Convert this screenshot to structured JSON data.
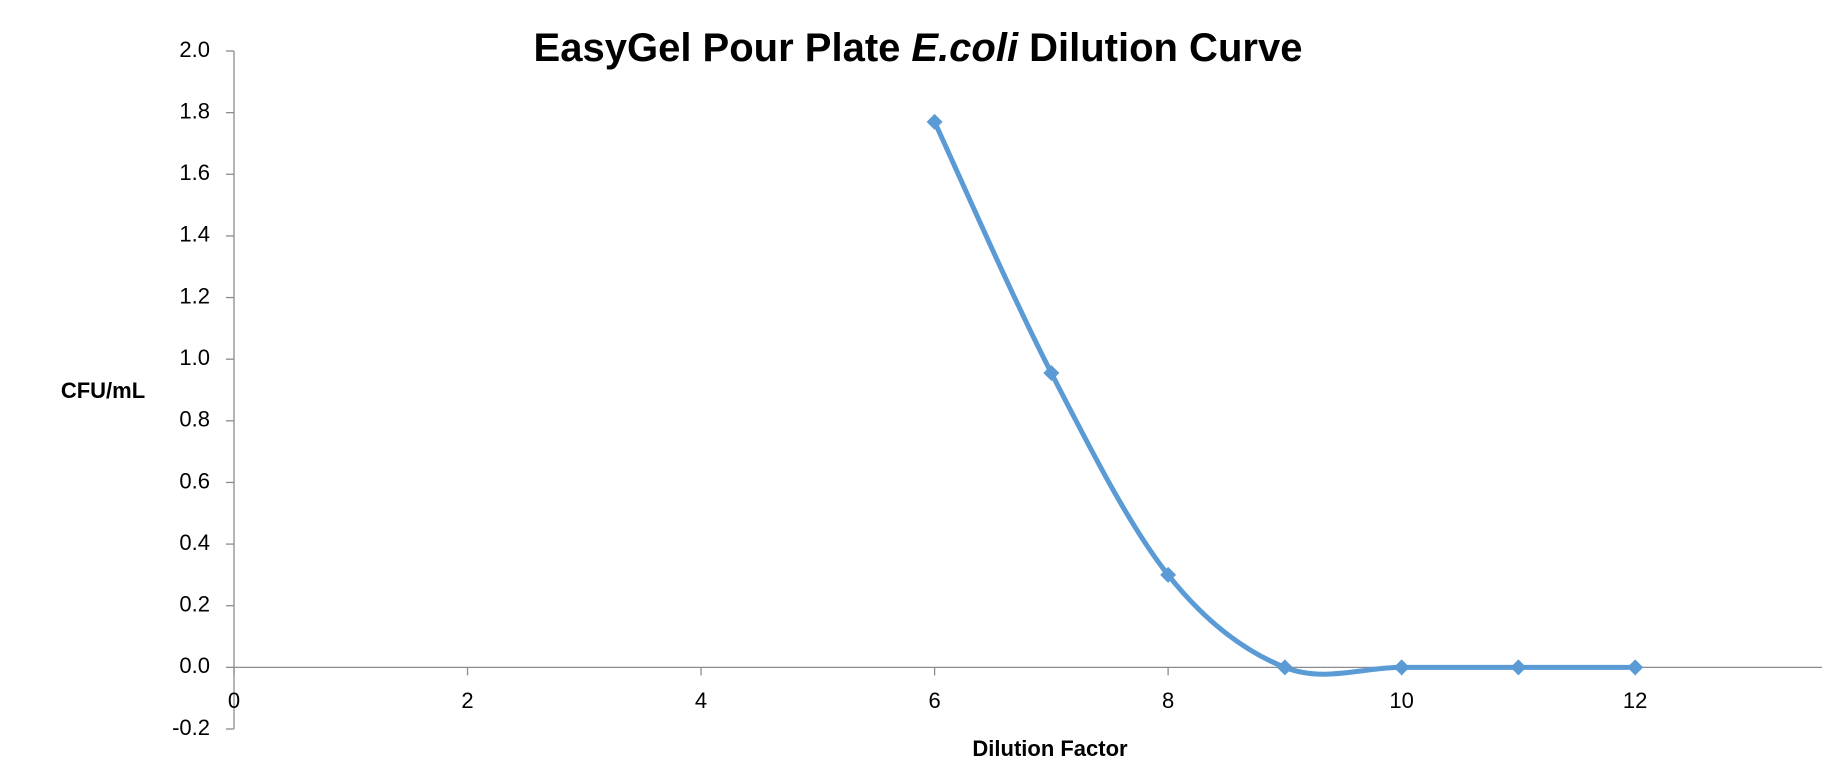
{
  "chart_data": {
    "type": "line",
    "title": [
      "EasyGel Pour Plate",
      "E.coli",
      "Dilution Curve"
    ],
    "xlabel": "Dilution Factor",
    "ylabel": "CFU/mL",
    "x": [
      6,
      7,
      8,
      9,
      10,
      11,
      12
    ],
    "values": [
      1.77,
      0.955,
      0.3,
      0,
      0,
      0,
      0
    ],
    "color": "#5b9bd5",
    "smooth": true,
    "marker": "diamond",
    "xlim": [
      0,
      13.6
    ],
    "xticks": [
      0,
      2,
      4,
      6,
      8,
      10,
      12
    ],
    "ylim": [
      -0.2,
      2.0
    ],
    "yticks": [
      {
        "value": -0.2,
        "label": "-0.2"
      },
      {
        "value": 0,
        "label": "0.0"
      },
      {
        "value": 0.2,
        "label": "0.2"
      },
      {
        "value": 0.4,
        "label": "0.4"
      },
      {
        "value": 0.6,
        "label": "0.6"
      },
      {
        "value": 0.8,
        "label": "0.8"
      },
      {
        "value": 1.0,
        "label": "1.0"
      },
      {
        "value": 1.2,
        "label": "1.2"
      },
      {
        "value": 1.4,
        "label": "1.4"
      },
      {
        "value": 1.6,
        "label": "1.6"
      },
      {
        "value": 1.8,
        "label": "1.8"
      },
      {
        "value": 2.0,
        "label": "2.0"
      }
    ],
    "grid": false
  }
}
